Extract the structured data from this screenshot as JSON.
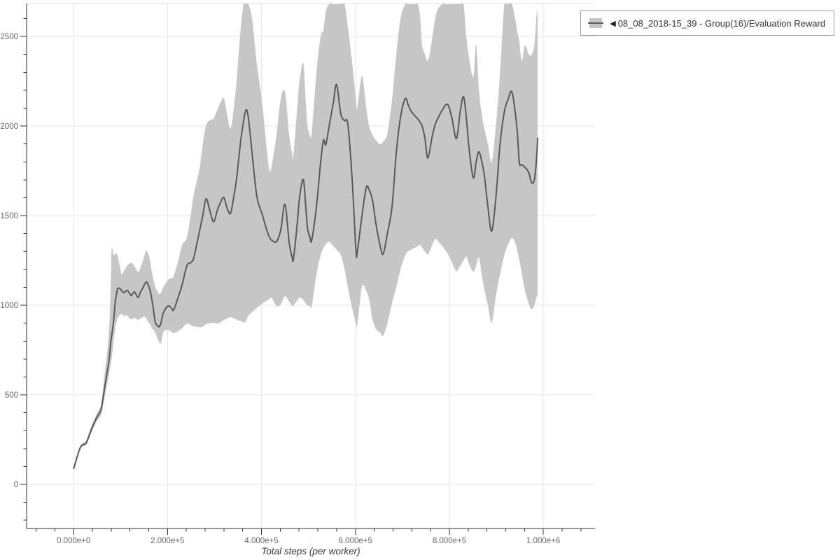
{
  "legend": {
    "marker": "◀",
    "label": "08_08_2018-15_39 - Group(16)/Evaluation Reward"
  },
  "chart_data": {
    "type": "line",
    "title": "",
    "xlabel": "Total steps (per worker)",
    "ylabel": "",
    "grid": true,
    "legend_position": "top-right",
    "x_range": [
      -100000,
      1110000
    ],
    "y_range": [
      -246,
      2684
    ],
    "xaxis": {
      "major_ticks": [
        0,
        200000,
        400000,
        600000,
        800000,
        1000000
      ],
      "major_labels": [
        "0.000e+0",
        "2.000e+5",
        "4.000e+5",
        "6.000e+5",
        "8.000e+5",
        "1.000e+6"
      ],
      "minor_start": -80000,
      "minor_step": 40000,
      "minor_end": 1080000
    },
    "yaxis": {
      "major_ticks": [
        0,
        500,
        1000,
        1500,
        2000,
        2500
      ],
      "major_labels": [
        "0",
        "500",
        "1000",
        "1500",
        "2000",
        "2500"
      ],
      "minor_start": -200,
      "minor_step": 100,
      "minor_end": 2600
    },
    "colors": {
      "line": "#595959",
      "band": "#c6c6c6",
      "grid": "#e6e6e6",
      "frame": "#dddddd",
      "axis": "#333333",
      "tick_label": "#666666",
      "axis_title": "#3c3c3c"
    },
    "series": [
      {
        "name": "08_08_2018-15_39 - Group(16)/Evaluation Reward",
        "points_format": [
          "step",
          "mean",
          "min",
          "max"
        ],
        "points": [
          [
            0,
            86,
            86,
            86
          ],
          [
            12000,
            190,
            185,
            196
          ],
          [
            18000,
            219,
            210,
            230
          ],
          [
            27000,
            232,
            222,
            246
          ],
          [
            37000,
            300,
            285,
            320
          ],
          [
            49000,
            371,
            350,
            394
          ],
          [
            57000,
            406,
            380,
            434
          ],
          [
            60000,
            437,
            405,
            472
          ],
          [
            67000,
            555,
            498,
            640
          ],
          [
            75000,
            684,
            608,
            840
          ],
          [
            79000,
            789,
            665,
            1100
          ],
          [
            81000,
            830,
            700,
            1316
          ],
          [
            85000,
            906,
            790,
            1282
          ],
          [
            89000,
            1023,
            880,
            1286
          ],
          [
            92000,
            1070,
            905,
            1289
          ],
          [
            94000,
            1094,
            930,
            1272
          ],
          [
            100000,
            1090,
            948,
            1200
          ],
          [
            103000,
            1078,
            950,
            1172
          ],
          [
            108000,
            1070,
            940,
            1196
          ],
          [
            112000,
            1082,
            945,
            1212
          ],
          [
            116000,
            1078,
            935,
            1227
          ],
          [
            122000,
            1055,
            922,
            1236
          ],
          [
            124000,
            1058,
            920,
            1238
          ],
          [
            130000,
            1074,
            930,
            1216
          ],
          [
            137000,
            1043,
            918,
            1186
          ],
          [
            142000,
            1070,
            925,
            1206
          ],
          [
            148000,
            1100,
            935,
            1252
          ],
          [
            152000,
            1121,
            935,
            1289
          ],
          [
            156000,
            1129,
            920,
            1305
          ],
          [
            161000,
            1098,
            900,
            1270
          ],
          [
            164000,
            1070,
            888,
            1230
          ],
          [
            168000,
            1012,
            868,
            1168
          ],
          [
            174000,
            906,
            845,
            1102
          ],
          [
            179000,
            887,
            812,
            1075
          ],
          [
            182000,
            879,
            795,
            1063
          ],
          [
            186000,
            900,
            788,
            1070
          ],
          [
            191000,
            957,
            850,
            1100
          ],
          [
            201000,
            996,
            862,
            1141
          ],
          [
            208000,
            985,
            852,
            1150
          ],
          [
            213000,
            973,
            845,
            1162
          ],
          [
            222000,
            1040,
            855,
            1240
          ],
          [
            231000,
            1113,
            872,
            1336
          ],
          [
            241000,
            1219,
            898,
            1376
          ],
          [
            249000,
            1238,
            890,
            1500
          ],
          [
            256000,
            1266,
            882,
            1620
          ],
          [
            268000,
            1414,
            878,
            1762
          ],
          [
            275000,
            1500,
            880,
            1900
          ],
          [
            282000,
            1594,
            895,
            2002
          ],
          [
            290000,
            1530,
            900,
            2032
          ],
          [
            298000,
            1465,
            902,
            2042
          ],
          [
            306000,
            1530,
            898,
            2090
          ],
          [
            313000,
            1575,
            905,
            2132
          ],
          [
            320000,
            1601,
            918,
            2156
          ],
          [
            327000,
            1540,
            925,
            2062
          ],
          [
            334000,
            1512,
            935,
            1986
          ],
          [
            340000,
            1590,
            928,
            2080
          ],
          [
            347000,
            1707,
            920,
            2252
          ],
          [
            355000,
            1900,
            912,
            2522
          ],
          [
            362000,
            2030,
            905,
            2680
          ],
          [
            367000,
            2090,
            910,
            2680
          ],
          [
            372000,
            2050,
            940,
            2680
          ],
          [
            380000,
            1850,
            960,
            2600
          ],
          [
            390000,
            1610,
            985,
            2352
          ],
          [
            402000,
            1504,
            1010,
            2118
          ],
          [
            410000,
            1430,
            1023,
            1902
          ],
          [
            417000,
            1380,
            1035,
            1754
          ],
          [
            422000,
            1363,
            1040,
            1782
          ],
          [
            432000,
            1355,
            995,
            1952
          ],
          [
            441000,
            1420,
            1005,
            2150
          ],
          [
            450000,
            1564,
            1051,
            2190
          ],
          [
            459000,
            1350,
            1020,
            1950
          ],
          [
            465000,
            1270,
            996,
            1852
          ],
          [
            468000,
            1258,
            1000,
            1832
          ],
          [
            476000,
            1450,
            1025,
            2100
          ],
          [
            481000,
            1600,
            1043,
            2250
          ],
          [
            489000,
            1703,
            1030,
            2352
          ],
          [
            494000,
            1560,
            1010,
            2152
          ],
          [
            498000,
            1430,
            1000,
            2002
          ],
          [
            503000,
            1380,
            995,
            1950
          ],
          [
            507000,
            1363,
            992,
            1962
          ],
          [
            517000,
            1550,
            1170,
            2300
          ],
          [
            526000,
            1800,
            1280,
            2500
          ],
          [
            532000,
            1922,
            1320,
            2536
          ],
          [
            537000,
            1896,
            1340,
            2640
          ],
          [
            544000,
            2000,
            1355,
            2680
          ],
          [
            553000,
            2130,
            1330,
            2680
          ],
          [
            560000,
            2232,
            1310,
            2680
          ],
          [
            569000,
            2066,
            1280,
            2680
          ],
          [
            577000,
            2030,
            1200,
            2680
          ],
          [
            584000,
            2008,
            1100,
            2552
          ],
          [
            593000,
            1700,
            984,
            2352
          ],
          [
            601000,
            1310,
            900,
            2152
          ],
          [
            604000,
            1297,
            890,
            2102
          ],
          [
            614000,
            1500,
            1102,
            2280
          ],
          [
            623000,
            1656,
            1080,
            2100
          ],
          [
            629000,
            1645,
            1035,
            2000
          ],
          [
            636000,
            1590,
            925,
            1952
          ],
          [
            644000,
            1450,
            867,
            1920
          ],
          [
            652000,
            1340,
            850,
            1900
          ],
          [
            659000,
            1285,
            830,
            1912
          ],
          [
            668000,
            1400,
            900,
            1960
          ],
          [
            678000,
            1551,
            1012,
            2150
          ],
          [
            687000,
            1850,
            1100,
            2400
          ],
          [
            696000,
            2050,
            1200,
            2600
          ],
          [
            706000,
            2153,
            1280,
            2680
          ],
          [
            712000,
            2120,
            1300,
            2680
          ],
          [
            718000,
            2086,
            1310,
            2680
          ],
          [
            726000,
            2059,
            1320,
            2680
          ],
          [
            733000,
            2039,
            1330,
            2680
          ],
          [
            738000,
            2020,
            1336,
            2600
          ],
          [
            742000,
            2000,
            1320,
            2452
          ],
          [
            748000,
            1930,
            1300,
            2400
          ],
          [
            753000,
            1824,
            1285,
            2364
          ],
          [
            758000,
            1860,
            1300,
            2400
          ],
          [
            764000,
            1950,
            1340,
            2500
          ],
          [
            770000,
            2010,
            1370,
            2600
          ],
          [
            775000,
            2040,
            1360,
            2650
          ],
          [
            785000,
            2090,
            1330,
            2680
          ],
          [
            796000,
            2121,
            1290,
            2680
          ],
          [
            805000,
            2050,
            1240,
            2680
          ],
          [
            815000,
            1930,
            1191,
            2680
          ],
          [
            823000,
            2080,
            1220,
            2680
          ],
          [
            830000,
            2164,
            1250,
            2680
          ],
          [
            836000,
            2050,
            1270,
            2502
          ],
          [
            842000,
            1871,
            1230,
            2380
          ],
          [
            851000,
            1711,
            1188,
            2273
          ],
          [
            857000,
            1800,
            1220,
            2457
          ],
          [
            863000,
            1856,
            1266,
            2200
          ],
          [
            870000,
            1790,
            1150,
            2050
          ],
          [
            875000,
            1715,
            1080,
            1980
          ],
          [
            882000,
            1550,
            1000,
            1900
          ],
          [
            890000,
            1414,
            902,
            1800
          ],
          [
            899000,
            1600,
            1050,
            2002
          ],
          [
            908000,
            1900,
            1172,
            2300
          ],
          [
            917000,
            2080,
            1280,
            2680
          ],
          [
            925000,
            2150,
            1340,
            2680
          ],
          [
            933000,
            2192,
            1375,
            2680
          ],
          [
            940000,
            2080,
            1350,
            2600
          ],
          [
            945000,
            1950,
            1300,
            2520
          ],
          [
            949000,
            1793,
            1250,
            2469
          ],
          [
            954000,
            1785,
            1180,
            2364
          ],
          [
            961000,
            1770,
            1080,
            2449
          ],
          [
            969000,
            1740,
            1010,
            2400
          ],
          [
            975000,
            1684,
            977,
            2398
          ],
          [
            981000,
            1700,
            1000,
            2450
          ],
          [
            985000,
            1800,
            1040,
            2600
          ],
          [
            988000,
            1934,
            1060,
            2656
          ]
        ]
      }
    ]
  }
}
